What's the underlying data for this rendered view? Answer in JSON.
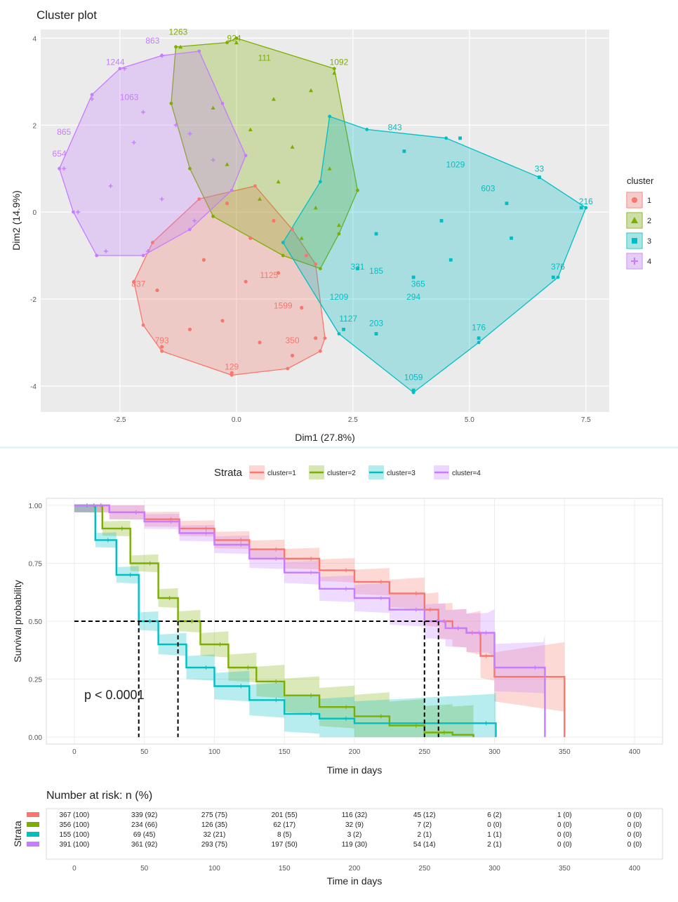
{
  "cluster_plot": {
    "title": "Cluster plot",
    "xlabel": "Dim1 (27.8%)",
    "ylabel": "Dim2 (14.9%)",
    "legend_title": "cluster",
    "legend_items": [
      "1",
      "2",
      "3",
      "4"
    ]
  },
  "survival_plot": {
    "legend_title": "Strata",
    "legend_items": [
      "cluster=1",
      "cluster=2",
      "cluster=3",
      "cluster=4"
    ],
    "ylabel": "Survival probability",
    "xlabel": "Time in days",
    "pvalue": "p < 0.0001"
  },
  "risk_table": {
    "title": "Number at risk: n (%)",
    "ylabel": "Strata",
    "xlabel": "Time in days",
    "times": [
      "0",
      "50",
      "100",
      "150",
      "200",
      "250",
      "300",
      "350",
      "400"
    ],
    "rows": [
      [
        "367 (100)",
        "339 (92)",
        "275 (75)",
        "201 (55)",
        "116 (32)",
        "45 (12)",
        "6 (2)",
        "1 (0)",
        "0 (0)"
      ],
      [
        "356 (100)",
        "234 (66)",
        "126 (35)",
        "62 (17)",
        "32 (9)",
        "7 (2)",
        "0 (0)",
        "0 (0)",
        "0 (0)"
      ],
      [
        "155 (100)",
        "69 (45)",
        "32 (21)",
        "8 (5)",
        "3 (2)",
        "2 (1)",
        "1 (1)",
        "0 (0)",
        "0 (0)"
      ],
      [
        "391 (100)",
        "361 (92)",
        "293 (75)",
        "197 (50)",
        "119 (30)",
        "54 (14)",
        "2 (1)",
        "0 (0)",
        "0 (0)"
      ]
    ]
  },
  "colors": {
    "c1": "#f8766d",
    "c2": "#7cae00",
    "c3": "#00bfc4",
    "c4": "#c77cff",
    "panel_bg": "#ebebeb"
  },
  "chart_data": [
    {
      "type": "scatter",
      "title": "Cluster plot",
      "xlabel": "Dim1 (27.8%)",
      "ylabel": "Dim2 (14.9%)",
      "xlim": [
        -4.2,
        8.0
      ],
      "ylim": [
        -4.6,
        4.2
      ],
      "x_ticks": [
        "-2.5",
        "0.0",
        "2.5",
        "5.0",
        "7.5"
      ],
      "y_ticks": [
        "4",
        "2",
        "0",
        "-2",
        "-4"
      ],
      "legend": "right",
      "grid": true,
      "series": [
        {
          "name": "1",
          "hull": [
            [
              -2.2,
              -1.6
            ],
            [
              -2.0,
              -2.6
            ],
            [
              -1.6,
              -3.2
            ],
            [
              -0.1,
              -3.75
            ],
            [
              1.1,
              -3.6
            ],
            [
              1.8,
              -3.2
            ],
            [
              1.9,
              -2.9
            ],
            [
              1.7,
              -1.2
            ],
            [
              1.2,
              -0.4
            ],
            [
              0.4,
              0.6
            ],
            [
              -0.8,
              0.3
            ],
            [
              -1.8,
              -0.7
            ]
          ],
          "points": [
            [
              -1.6,
              -3.1
            ],
            [
              -0.1,
              -3.7
            ],
            [
              1.2,
              -3.3
            ],
            [
              1.7,
              -2.9
            ],
            [
              0.5,
              -3.0
            ],
            [
              -0.3,
              -2.5
            ],
            [
              -1.0,
              -2.7
            ],
            [
              0.2,
              -1.6
            ],
            [
              1.4,
              -2.2
            ],
            [
              -1.7,
              -1.8
            ],
            [
              0.9,
              -1.4
            ],
            [
              -0.7,
              -1.1
            ],
            [
              0.3,
              -0.6
            ],
            [
              0.8,
              -0.2
            ],
            [
              -0.2,
              0.2
            ],
            [
              1.5,
              -1.0
            ]
          ],
          "labels": [
            {
              "t": "793",
              "x": -1.6,
              "y": -3.1
            },
            {
              "t": "129",
              "x": -0.1,
              "y": -3.7
            },
            {
              "t": "350",
              "x": 1.2,
              "y": -3.1
            },
            {
              "t": "1599",
              "x": 1.0,
              "y": -2.3
            },
            {
              "t": "837",
              "x": -2.1,
              "y": -1.8
            },
            {
              "t": "1125",
              "x": 0.7,
              "y": -1.6
            }
          ]
        },
        {
          "name": "2",
          "hull": [
            [
              -1.3,
              3.8
            ],
            [
              -0.2,
              3.9
            ],
            [
              0.0,
              4.0
            ],
            [
              2.1,
              3.3
            ],
            [
              2.6,
              0.5
            ],
            [
              2.2,
              -0.5
            ],
            [
              1.8,
              -1.3
            ],
            [
              1.0,
              -1.0
            ],
            [
              -0.5,
              -0.1
            ],
            [
              -1.0,
              1.0
            ],
            [
              -1.4,
              2.5
            ]
          ],
          "points": [
            [
              -1.2,
              3.8
            ],
            [
              0.0,
              3.9
            ],
            [
              2.1,
              3.2
            ],
            [
              1.6,
              2.8
            ],
            [
              0.8,
              2.6
            ],
            [
              -0.5,
              2.4
            ],
            [
              0.3,
              1.9
            ],
            [
              1.2,
              1.5
            ],
            [
              2.0,
              1.0
            ],
            [
              -0.2,
              1.1
            ],
            [
              0.9,
              0.7
            ],
            [
              1.7,
              0.1
            ],
            [
              2.2,
              -0.3
            ],
            [
              1.4,
              -0.6
            ],
            [
              0.5,
              0.3
            ]
          ],
          "labels": [
            {
              "t": "1263",
              "x": -1.25,
              "y": 4.0
            },
            {
              "t": "924",
              "x": -0.05,
              "y": 3.85
            },
            {
              "t": "111",
              "x": 0.6,
              "y": 3.4
            },
            {
              "t": "1092",
              "x": 2.2,
              "y": 3.3
            }
          ]
        },
        {
          "name": "3",
          "hull": [
            [
              2.0,
              2.2
            ],
            [
              2.8,
              1.9
            ],
            [
              4.5,
              1.7
            ],
            [
              6.5,
              0.8
            ],
            [
              7.5,
              0.1
            ],
            [
              6.9,
              -1.5
            ],
            [
              5.2,
              -3.0
            ],
            [
              3.8,
              -4.15
            ],
            [
              2.2,
              -2.8
            ],
            [
              1.0,
              -0.7
            ],
            [
              1.8,
              0.7
            ]
          ],
          "points": [
            [
              6.5,
              0.8
            ],
            [
              7.4,
              0.1
            ],
            [
              6.8,
              -1.5
            ],
            [
              5.2,
              -2.9
            ],
            [
              3.8,
              -4.1
            ],
            [
              3.0,
              -2.8
            ],
            [
              2.3,
              -2.7
            ],
            [
              4.8,
              1.7
            ],
            [
              3.6,
              1.4
            ],
            [
              5.8,
              0.2
            ],
            [
              4.4,
              -0.2
            ],
            [
              5.9,
              -0.6
            ],
            [
              3.0,
              -0.5
            ],
            [
              4.6,
              -1.1
            ],
            [
              3.8,
              -1.5
            ],
            [
              2.6,
              -1.3
            ]
          ],
          "labels": [
            {
              "t": "33",
              "x": 6.5,
              "y": 0.85
            },
            {
              "t": "216",
              "x": 7.5,
              "y": 0.1
            },
            {
              "t": "376",
              "x": 6.9,
              "y": -1.4
            },
            {
              "t": "176",
              "x": 5.2,
              "y": -2.8
            },
            {
              "t": "1059",
              "x": 3.8,
              "y": -3.95
            },
            {
              "t": "203",
              "x": 3.0,
              "y": -2.7
            },
            {
              "t": "1127",
              "x": 2.4,
              "y": -2.6
            },
            {
              "t": "1209",
              "x": 2.2,
              "y": -2.1
            },
            {
              "t": "843",
              "x": 3.4,
              "y": 1.8
            },
            {
              "t": "365",
              "x": 3.9,
              "y": -1.8
            },
            {
              "t": "294",
              "x": 3.8,
              "y": -2.1
            },
            {
              "t": "185",
              "x": 3.0,
              "y": -1.5
            },
            {
              "t": "331",
              "x": 2.6,
              "y": -1.4
            },
            {
              "t": "1029",
              "x": 4.7,
              "y": 0.95
            },
            {
              "t": "603",
              "x": 5.4,
              "y": 0.4
            }
          ]
        },
        {
          "name": "4",
          "hull": [
            [
              -1.6,
              3.6
            ],
            [
              -0.8,
              3.7
            ],
            [
              -0.3,
              2.5
            ],
            [
              0.2,
              1.3
            ],
            [
              -0.1,
              0.5
            ],
            [
              -1.0,
              -0.4
            ],
            [
              -2.0,
              -1.0
            ],
            [
              -3.0,
              -1.0
            ],
            [
              -3.5,
              0.0
            ],
            [
              -3.8,
              1.0
            ],
            [
              -3.1,
              2.7
            ],
            [
              -2.5,
              3.3
            ]
          ],
          "points": [
            [
              -1.6,
              3.6
            ],
            [
              -2.4,
              3.3
            ],
            [
              -3.1,
              2.6
            ],
            [
              -3.7,
              1.0
            ],
            [
              -3.4,
              0.0
            ],
            [
              -2.8,
              -0.9
            ],
            [
              -1.9,
              -0.9
            ],
            [
              -0.9,
              -0.2
            ],
            [
              -0.5,
              1.2
            ],
            [
              -1.3,
              2.0
            ],
            [
              -2.2,
              1.6
            ],
            [
              -2.7,
              0.6
            ],
            [
              -1.6,
              0.3
            ],
            [
              -1.0,
              1.8
            ],
            [
              -2.0,
              2.3
            ]
          ],
          "labels": [
            {
              "t": "1244",
              "x": -2.6,
              "y": 3.3
            },
            {
              "t": "863",
              "x": -1.8,
              "y": 3.8
            },
            {
              "t": "1063",
              "x": -2.3,
              "y": 2.5
            },
            {
              "t": "865",
              "x": -3.7,
              "y": 1.7
            },
            {
              "t": "654",
              "x": -3.8,
              "y": 1.2
            }
          ]
        }
      ]
    },
    {
      "type": "line",
      "title": "",
      "xlabel": "Time in days",
      "ylabel": "Survival probability",
      "xlim": [
        -20,
        420
      ],
      "ylim": [
        -0.03,
        1.03
      ],
      "x_ticks": [
        0,
        50,
        100,
        150,
        200,
        250,
        300,
        350,
        400
      ],
      "y_ticks": [
        "0.00",
        "0.25",
        "0.50",
        "0.75",
        "1.00"
      ],
      "legend": "top",
      "grid": true,
      "median_line_y": 0.5,
      "medians": [
        260,
        74,
        46,
        250
      ],
      "series": [
        {
          "name": "cluster=1",
          "x": [
            0,
            25,
            50,
            75,
            100,
            125,
            150,
            175,
            200,
            225,
            250,
            260,
            270,
            280,
            290,
            300,
            350
          ],
          "y": [
            1.0,
            0.97,
            0.94,
            0.9,
            0.85,
            0.81,
            0.77,
            0.72,
            0.67,
            0.62,
            0.55,
            0.5,
            0.47,
            0.45,
            0.35,
            0.26,
            0.0
          ]
        },
        {
          "name": "cluster=2",
          "x": [
            0,
            20,
            40,
            60,
            74,
            90,
            110,
            130,
            150,
            175,
            200,
            225,
            250,
            270,
            285
          ],
          "y": [
            1.0,
            0.9,
            0.75,
            0.6,
            0.5,
            0.4,
            0.3,
            0.24,
            0.18,
            0.13,
            0.09,
            0.05,
            0.02,
            0.01,
            0.0
          ]
        },
        {
          "name": "cluster=3",
          "x": [
            0,
            15,
            30,
            46,
            60,
            80,
            100,
            125,
            150,
            175,
            200,
            300,
            301
          ],
          "y": [
            1.0,
            0.85,
            0.7,
            0.5,
            0.4,
            0.3,
            0.22,
            0.16,
            0.1,
            0.08,
            0.06,
            0.06,
            0.0
          ]
        },
        {
          "name": "cluster=4",
          "x": [
            0,
            25,
            50,
            75,
            100,
            125,
            150,
            175,
            200,
            225,
            250,
            265,
            280,
            295,
            300,
            335,
            336
          ],
          "y": [
            1.0,
            0.97,
            0.93,
            0.88,
            0.83,
            0.77,
            0.71,
            0.64,
            0.6,
            0.55,
            0.5,
            0.47,
            0.45,
            0.45,
            0.3,
            0.3,
            0.0
          ]
        }
      ]
    }
  ]
}
